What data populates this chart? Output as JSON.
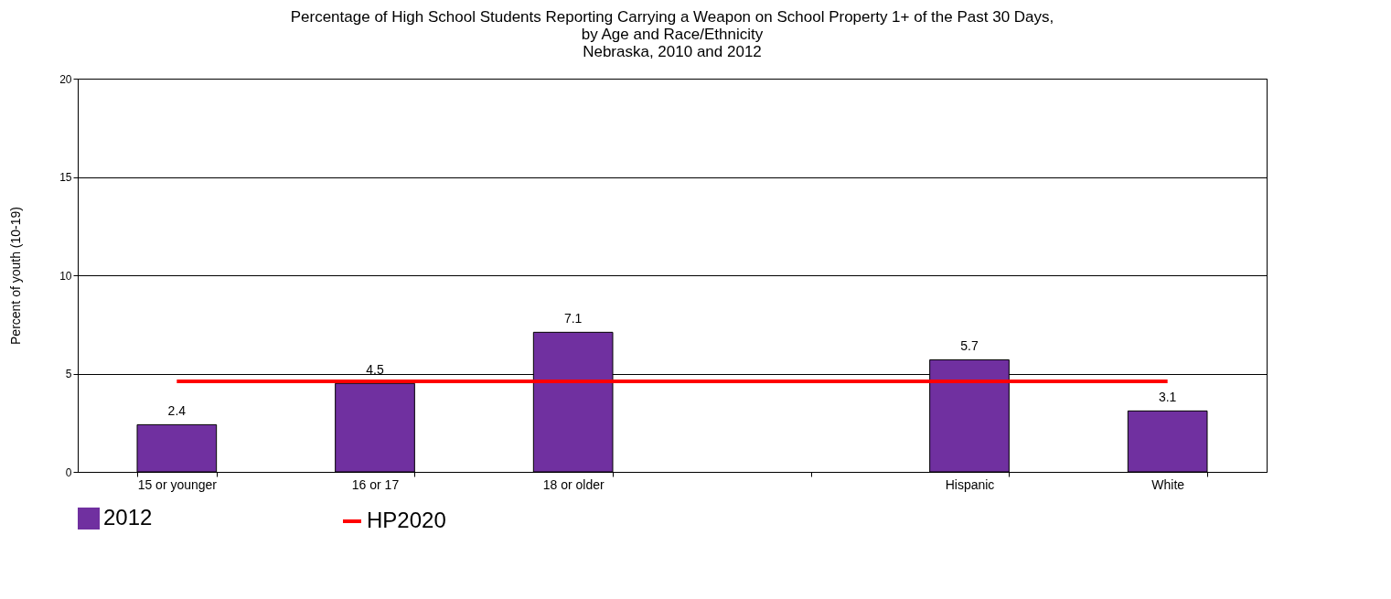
{
  "chart_data": {
    "type": "bar",
    "title": "Percentage of High School Students Reporting Carrying a Weapon on School Property 1+ of the Past 30 Days,\nby Age and Race/Ethnicity\nNebraska, 2010 and 2012",
    "ylabel": "Percent of youth (10-19)",
    "categories": [
      "15 or younger",
      "16 or 17",
      "18 or older",
      null,
      "Hispanic",
      "White"
    ],
    "series": [
      {
        "name": "2012",
        "color": "#7030a0",
        "values": [
          2.4,
          4.5,
          7.1,
          null,
          5.7,
          3.1
        ],
        "value_labels": [
          "2.4",
          "4.5",
          "7.1",
          null,
          "5.7",
          "3.1"
        ]
      },
      {
        "name": "HP2020",
        "type": "line",
        "color": "#ff0000",
        "values": [
          4.6,
          4.6,
          4.6,
          4.6,
          4.6,
          4.6
        ]
      }
    ],
    "ylim": [
      0,
      20
    ],
    "yticks": [
      0,
      5,
      10,
      15,
      20
    ],
    "grid": "y",
    "legend": "bottom"
  }
}
